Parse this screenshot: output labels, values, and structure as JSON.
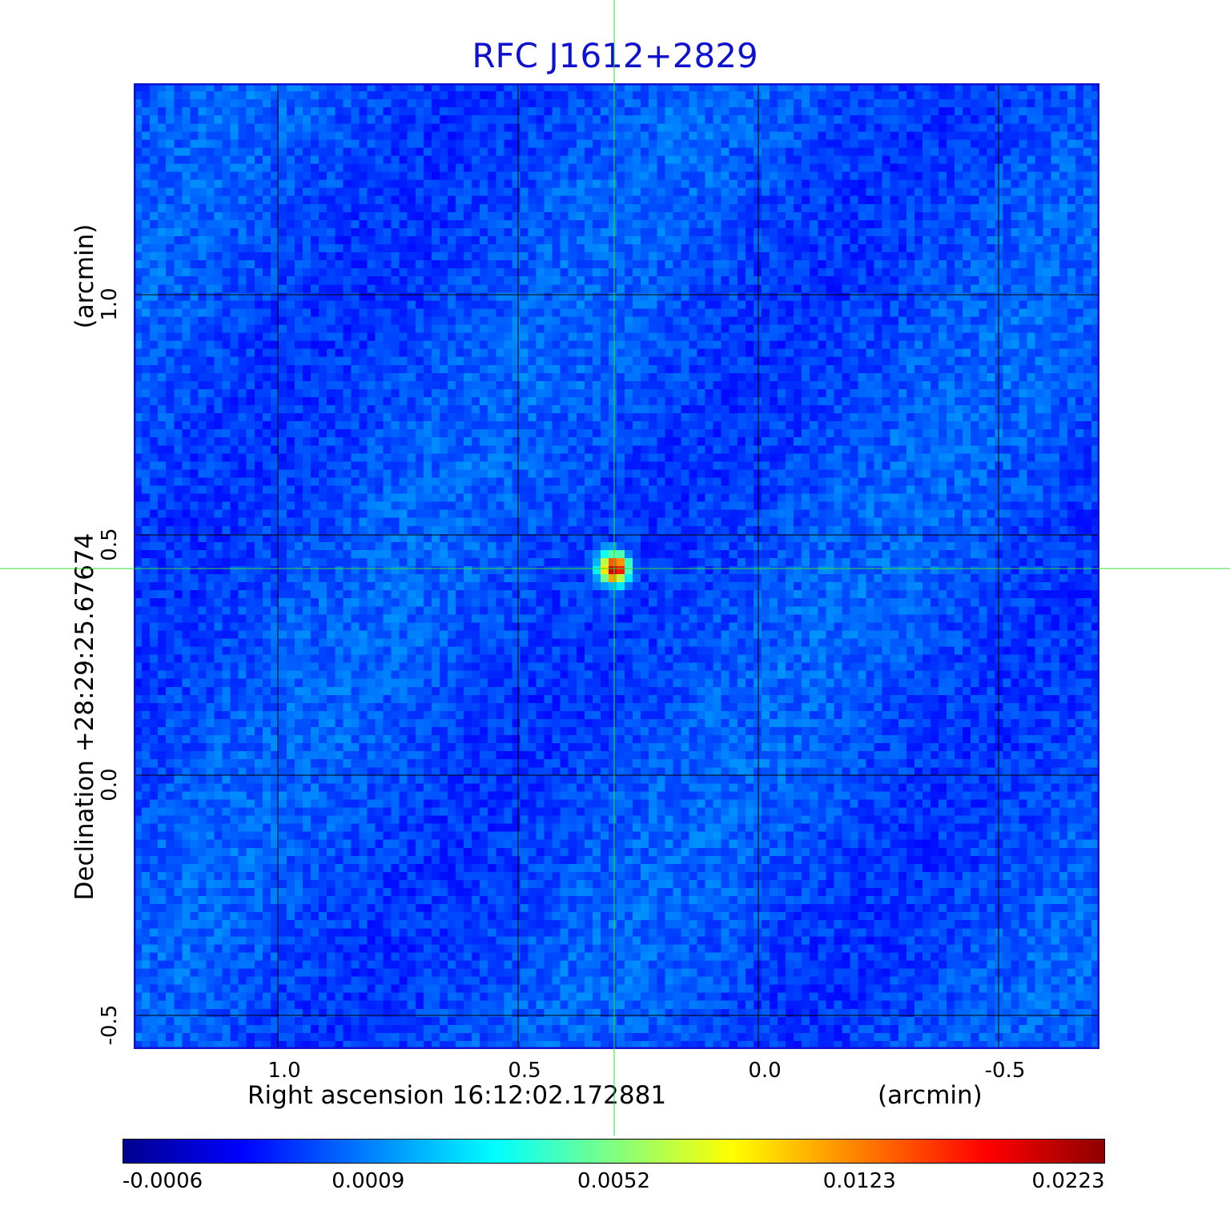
{
  "chart_data": {
    "type": "heatmap",
    "title": "RFC J1612+2829",
    "xlabel": "Right ascension  16:12:02.172881",
    "xunit": "(arcmin)",
    "ylabel": "Declination  +28:29:25.67674",
    "yunit": "(arcmin)",
    "xlim": [
      1.3,
      -0.71
    ],
    "ylim": [
      -0.57,
      1.44
    ],
    "x_ticks": [
      {
        "value": 1.0,
        "label": "1.0"
      },
      {
        "value": 0.5,
        "label": "0.5"
      },
      {
        "value": 0.0,
        "label": "0.0"
      },
      {
        "value": -0.5,
        "label": "-0.5"
      }
    ],
    "y_ticks": [
      {
        "value": 1.0,
        "label": "1.0"
      },
      {
        "value": 0.5,
        "label": "0.5"
      },
      {
        "value": 0.0,
        "label": "0.0"
      },
      {
        "value": -0.5,
        "label": "-0.5"
      }
    ],
    "grid": true,
    "crosshair": {
      "x": 0.3,
      "y": 0.43
    },
    "source_peak": {
      "x": 0.3,
      "y": 0.43,
      "value": 0.0223
    },
    "colorbar": {
      "colormap": "jet",
      "min": -0.0006,
      "max": 0.0223,
      "ticks": [
        "-0.0006",
        "0.0009",
        "0.0052",
        "0.0123",
        "0.0223"
      ]
    },
    "colors": {
      "title": "#1010d0",
      "frame": "#1010d0",
      "grid": "#000000",
      "crosshair": "#33dd33"
    }
  }
}
